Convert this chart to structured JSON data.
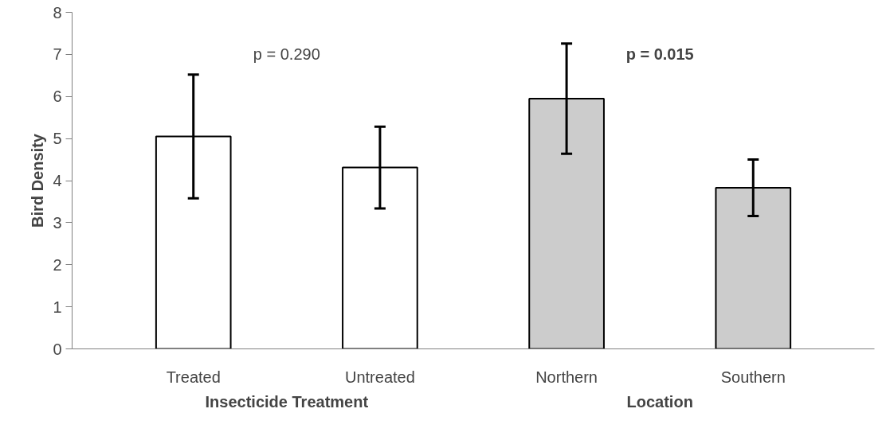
{
  "chart_data": {
    "type": "bar",
    "ylabel": "Bird Density",
    "categories": [
      "Treated",
      "Untreated",
      "Northern",
      "Southern"
    ],
    "values": [
      5.05,
      4.31,
      5.95,
      3.83
    ],
    "errors": [
      1.47,
      0.97,
      1.31,
      0.67
    ],
    "colors": [
      "#ffffff",
      "#ffffff",
      "#cccccc",
      "#cccccc"
    ],
    "ylim": [
      0,
      8
    ],
    "yticks": [
      0,
      1,
      2,
      3,
      4,
      5,
      6,
      7,
      8
    ],
    "grid": false,
    "annotations": [
      "p = 0.290",
      "p = 0.015",
      "Insecticide Treatment",
      "Location"
    ]
  }
}
